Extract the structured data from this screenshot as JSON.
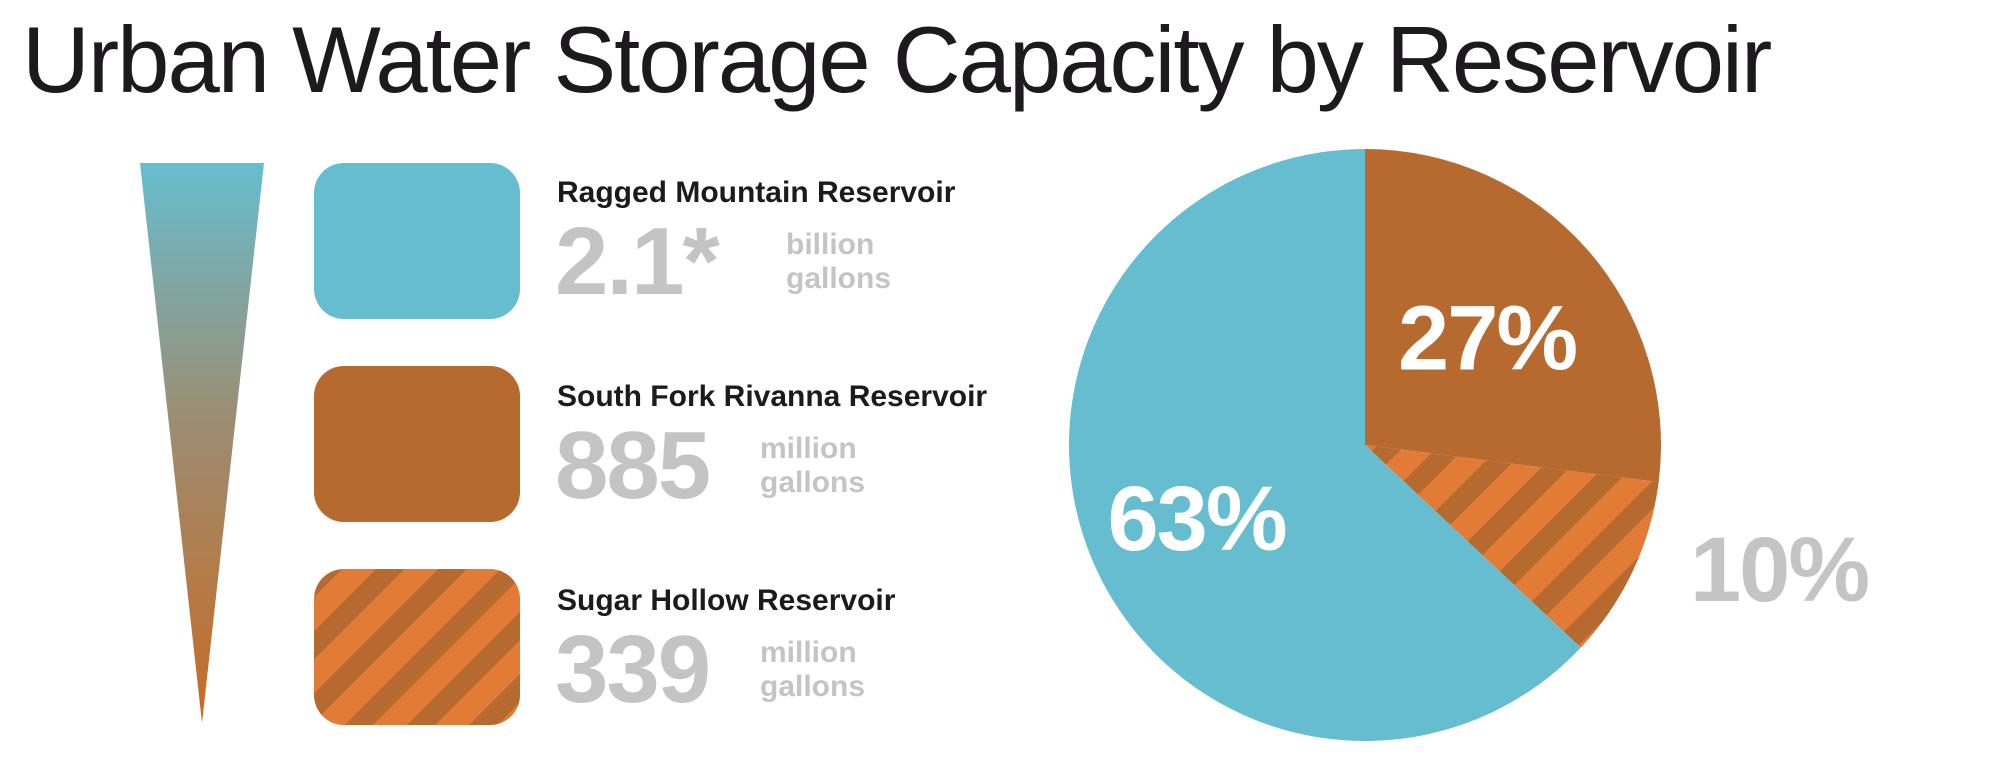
{
  "title": "Urban Water Storage Capacity by Reservoir",
  "colors": {
    "ragged": "#67bdd0",
    "southfork": "#b76a30",
    "sugar": "#e27b36",
    "sugar_stripe": "#b76a30",
    "value_gray": "#c4c4c4",
    "title_dark": "#1c1a1c"
  },
  "legend": [
    {
      "name": "Ragged Mountain Reservoir",
      "value": "2.1*",
      "unit_line1": "billion",
      "unit_line2": "gallons"
    },
    {
      "name": "South Fork Rivanna Reservoir",
      "value": "885",
      "unit_line1": "million",
      "unit_line2": "gallons"
    },
    {
      "name": "Sugar Hollow Reservoir",
      "value": "339",
      "unit_line1": "million",
      "unit_line2": "gallons"
    }
  ],
  "chart_data": {
    "type": "pie",
    "title": "Urban Water Storage Capacity by Reservoir",
    "slices": [
      {
        "name": "Ragged Mountain Reservoir",
        "percent": 63,
        "label": "63%",
        "color": "#67bdd0",
        "pattern": "solid"
      },
      {
        "name": "South Fork Rivanna Reservoir",
        "percent": 27,
        "label": "27%",
        "color": "#b76a30",
        "pattern": "solid"
      },
      {
        "name": "Sugar Hollow Reservoir",
        "percent": 10,
        "label": "10%",
        "color": "#e27b36",
        "pattern": "stripes"
      }
    ]
  }
}
